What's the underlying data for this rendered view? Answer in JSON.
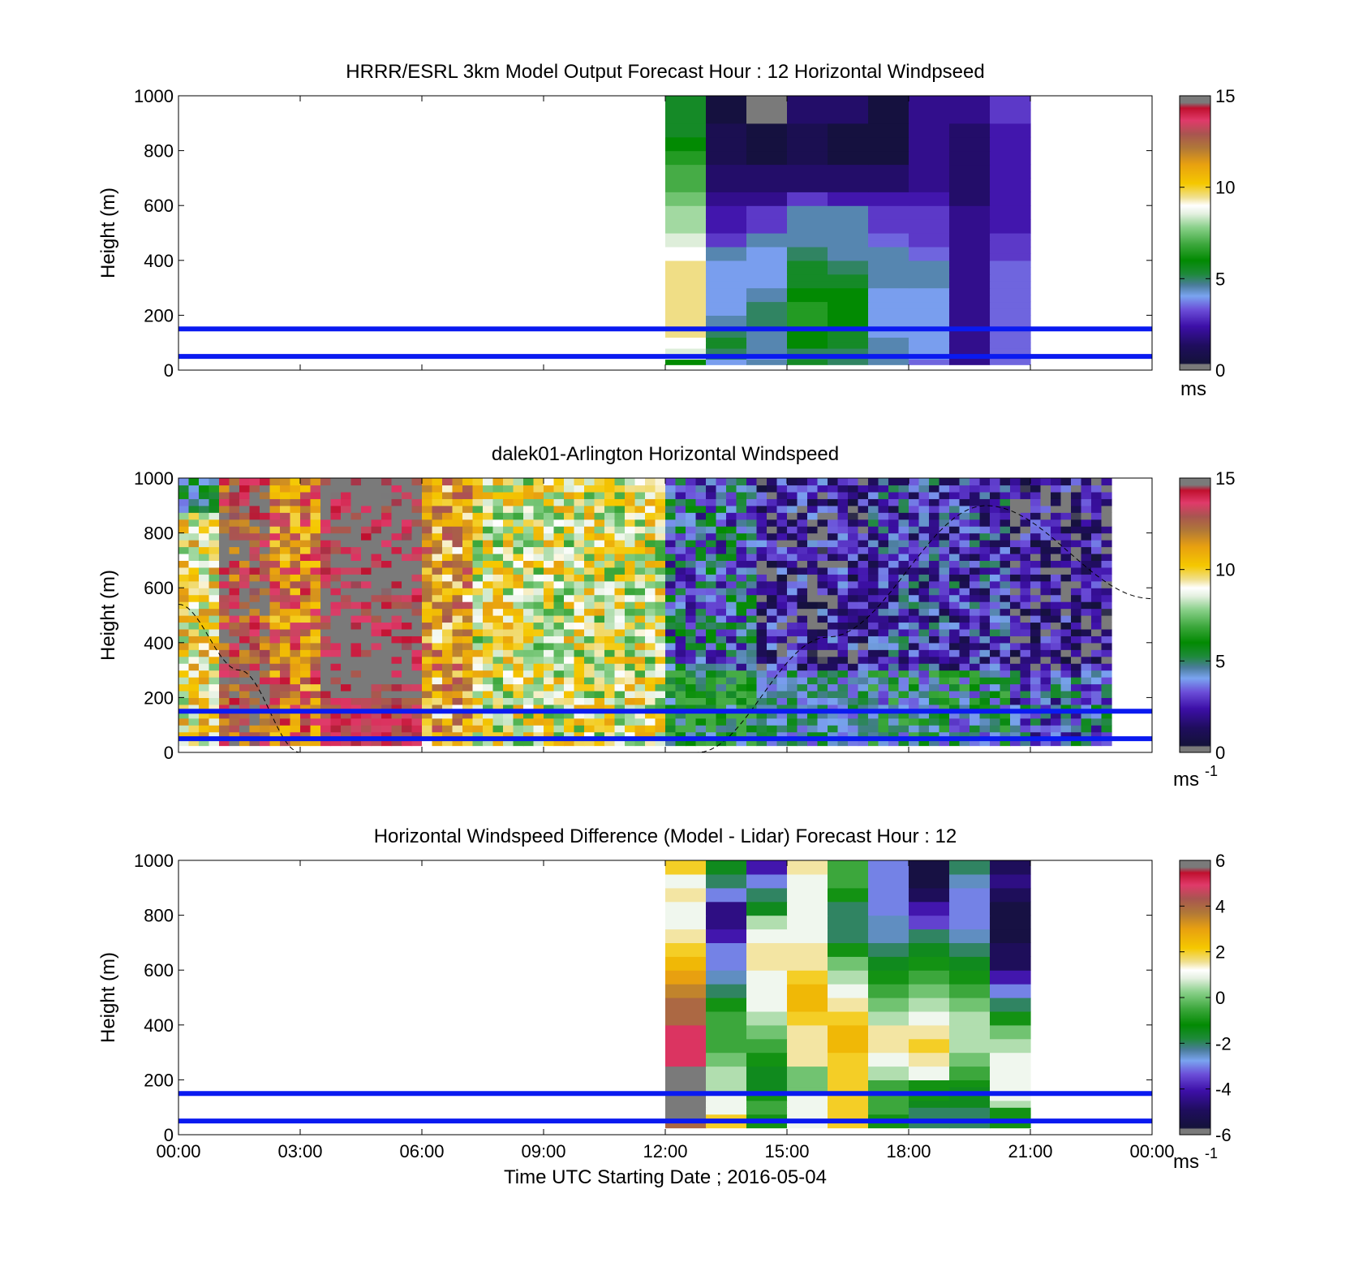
{
  "figure": {
    "xlabel": "Time UTC  Starting Date ; 2016-05-04",
    "x_tick_labels": [
      "00:00",
      "03:00",
      "06:00",
      "09:00",
      "12:00",
      "15:00",
      "18:00",
      "21:00",
      "00:00"
    ]
  },
  "chart_data": [
    {
      "type": "heatmap",
      "title": "HRRR/ESRL 3km Model Output   Forecast Hour : 12 Horizontal Windpseed",
      "ylabel": "Height (m)",
      "xlim_hours": [
        0,
        24
      ],
      "ylim": [
        0,
        1000
      ],
      "y_tick_labels": [
        "0",
        "200",
        "400",
        "600",
        "800",
        "1000"
      ],
      "colorbar": {
        "min": 0,
        "max": 15,
        "ticks": [
          "0",
          "5",
          "10",
          "15"
        ],
        "unit_label": "ms",
        "unit_sup": ""
      },
      "reference_lines_m": [
        50,
        150
      ],
      "column_edges_hours": [
        12,
        13,
        14,
        15,
        16,
        17,
        18,
        19,
        20,
        21
      ],
      "row_edges_m": [
        20,
        40,
        60,
        80,
        100,
        120,
        140,
        160,
        180,
        200,
        225,
        250,
        275,
        300,
        325,
        350,
        375,
        400,
        425,
        450,
        475,
        500,
        550,
        600,
        650,
        700,
        750,
        800,
        850,
        900,
        950,
        1000
      ],
      "values": [
        [
          6.0,
          4.0,
          4.5,
          5.5,
          5.0,
          4.5,
          3.5,
          2.0,
          3.5
        ],
        [
          9.0,
          5.0,
          4.0,
          5.0,
          5.0,
          4.5,
          4.0,
          2.0,
          3.5
        ],
        [
          8.5,
          5.0,
          4.5,
          5.0,
          5.0,
          4.5,
          4.0,
          2.0,
          3.5
        ],
        [
          9.0,
          5.5,
          4.5,
          6.0,
          5.5,
          4.5,
          4.0,
          2.0,
          3.5
        ],
        [
          9.0,
          5.5,
          4.5,
          6.0,
          5.5,
          4.5,
          4.0,
          2.0,
          3.5
        ],
        [
          9.5,
          5.0,
          4.5,
          6.0,
          5.5,
          4.0,
          4.0,
          2.0,
          3.5
        ],
        [
          9.5,
          5.0,
          4.5,
          6.0,
          5.5,
          4.0,
          4.0,
          2.0,
          3.5
        ],
        [
          9.5,
          4.5,
          5.0,
          6.5,
          6.0,
          4.0,
          4.0,
          2.0,
          3.5
        ],
        [
          9.5,
          4.5,
          5.0,
          6.5,
          6.0,
          4.0,
          4.0,
          2.0,
          3.5
        ],
        [
          9.5,
          4.0,
          5.0,
          6.5,
          6.0,
          4.0,
          4.0,
          2.0,
          3.5
        ],
        [
          9.5,
          4.0,
          5.0,
          6.5,
          6.0,
          4.0,
          4.0,
          2.0,
          3.5
        ],
        [
          9.5,
          4.0,
          4.5,
          6.0,
          6.0,
          4.0,
          4.0,
          2.0,
          3.5
        ],
        [
          9.5,
          4.0,
          4.5,
          6.0,
          6.0,
          4.0,
          4.0,
          2.0,
          3.5
        ],
        [
          9.5,
          4.0,
          4.0,
          5.5,
          5.5,
          4.5,
          4.5,
          2.0,
          3.5
        ],
        [
          9.5,
          4.0,
          4.0,
          5.5,
          5.5,
          4.5,
          4.5,
          2.0,
          3.5
        ],
        [
          9.5,
          4.0,
          4.0,
          5.5,
          5.0,
          4.5,
          4.5,
          2.0,
          3.5
        ],
        [
          9.5,
          4.0,
          4.0,
          5.5,
          5.0,
          4.5,
          4.5,
          2.0,
          3.5
        ],
        [
          9.0,
          4.5,
          4.0,
          5.0,
          4.5,
          4.5,
          3.5,
          2.0,
          3.0
        ],
        [
          9.0,
          4.5,
          4.0,
          5.0,
          4.5,
          4.5,
          3.5,
          2.0,
          3.0
        ],
        [
          8.5,
          3.0,
          4.5,
          4.5,
          4.5,
          3.5,
          3.0,
          2.0,
          3.0
        ],
        [
          8.5,
          3.0,
          4.5,
          4.5,
          4.5,
          3.5,
          3.0,
          2.0,
          3.0
        ],
        [
          8.0,
          2.5,
          3.0,
          4.5,
          4.5,
          3.0,
          3.0,
          2.0,
          2.5
        ],
        [
          8.0,
          2.5,
          3.0,
          4.5,
          4.5,
          3.0,
          3.0,
          2.0,
          2.5
        ],
        [
          7.5,
          2.0,
          2.0,
          3.0,
          2.5,
          2.5,
          2.5,
          1.5,
          2.5
        ],
        [
          7.0,
          1.5,
          1.5,
          1.5,
          1.5,
          1.5,
          2.0,
          1.5,
          2.5
        ],
        [
          7.0,
          1.5,
          1.5,
          1.5,
          1.5,
          1.5,
          2.0,
          1.5,
          2.5
        ],
        [
          6.5,
          1.0,
          0.5,
          1.0,
          0.5,
          0.5,
          2.0,
          1.5,
          2.5
        ],
        [
          6.0,
          1.0,
          0.5,
          1.0,
          0.5,
          0.5,
          2.0,
          1.5,
          2.5
        ],
        [
          5.5,
          1.0,
          0.5,
          1.0,
          0.5,
          0.5,
          2.0,
          1.5,
          2.5
        ],
        [
          5.5,
          0.5,
          0.2,
          1.5,
          1.5,
          0.5,
          2.0,
          2.0,
          3.0
        ],
        [
          5.5,
          0.5,
          0.2,
          1.5,
          1.5,
          0.5,
          2.0,
          2.0,
          3.0
        ]
      ]
    },
    {
      "type": "heatmap",
      "title": "dalek01-Arlington  Horizontal Windspeed",
      "ylabel": "Height (m)",
      "xlim_hours": [
        0,
        24
      ],
      "ylim": [
        0,
        1000
      ],
      "y_tick_labels": [
        "0",
        "200",
        "400",
        "600",
        "800",
        "1000"
      ],
      "colorbar": {
        "min": 0,
        "max": 15,
        "ticks": [
          "0",
          "5",
          "10",
          "15"
        ],
        "unit_label": "ms",
        "unit_sup": "-1"
      },
      "reference_lines_m": [
        50,
        150
      ],
      "time_step_hours": 0.25,
      "height_step_m": 25,
      "height_start_m": 25,
      "region_summary": [
        {
          "from_h": 0.0,
          "to_h": 0.8,
          "mean_ms": 9.5,
          "note": "orange/yellow, green aloft"
        },
        {
          "from_h": 0.8,
          "to_h": 2.2,
          "mean_ms": 13.5,
          "note": "red/pink"
        },
        {
          "from_h": 2.2,
          "to_h": 3.3,
          "mean_ms": 12.0,
          "note": "brown/red"
        },
        {
          "from_h": 3.3,
          "to_h": 5.9,
          "mean_ms": 15.0,
          "note": "grey saturated core above 200 m, red below"
        },
        {
          "from_h": 5.9,
          "to_h": 7.1,
          "mean_ms": 11.0,
          "note": "brown"
        },
        {
          "from_h": 7.1,
          "to_h": 12.0,
          "mean_ms": 9.0,
          "note": "yellow/orange with grey/white streaks"
        },
        {
          "from_h": 12.0,
          "to_h": 14.2,
          "mean_ms": 4.0,
          "note": "green/blue mix"
        },
        {
          "from_h": 14.2,
          "to_h": 17.0,
          "mean_ms": 2.0,
          "note": "dark blue/purple aloft, green below 300 m"
        },
        {
          "from_h": 17.0,
          "to_h": 20.5,
          "mean_ms": 3.0,
          "note": "purple/green mix"
        },
        {
          "from_h": 20.5,
          "to_h": 23.0,
          "mean_ms": 1.5,
          "note": "dark purple/navy aloft, green below"
        }
      ],
      "dashed_curve": {
        "description": "sinusoid-like dashed reference curve",
        "points_hours_m": [
          [
            0.0,
            540
          ],
          [
            1.5,
            300
          ],
          [
            3.0,
            0
          ],
          [
            12.8,
            0
          ],
          [
            16.0,
            420
          ],
          [
            19.9,
            900
          ],
          [
            24.0,
            560
          ]
        ]
      }
    },
    {
      "type": "heatmap",
      "title": "Horizontal Windspeed Difference (Model - Lidar) Forecast Hour : 12",
      "ylabel": "Height (m)",
      "xlim_hours": [
        0,
        24
      ],
      "ylim": [
        0,
        1000
      ],
      "y_tick_labels": [
        "0",
        "200",
        "400",
        "600",
        "800",
        "1000"
      ],
      "colorbar": {
        "min": -6,
        "max": 6,
        "ticks": [
          "-6",
          "-4",
          "-2",
          "0",
          "2",
          "4",
          "6"
        ],
        "unit_label": "ms",
        "unit_sup": "-1"
      },
      "reference_lines_m": [
        50,
        150
      ],
      "column_edges_hours": [
        12,
        13,
        14,
        15,
        16,
        17,
        18,
        19,
        20,
        21
      ],
      "row_edges_m": [
        25,
        50,
        75,
        100,
        125,
        150,
        175,
        200,
        250,
        300,
        350,
        400,
        450,
        500,
        550,
        600,
        650,
        700,
        750,
        800,
        850,
        900,
        950,
        1000
      ],
      "values": [
        [
          4.0,
          2.0,
          -1.0,
          1.0,
          2.0,
          -1.0,
          -2.0,
          -2.0,
          -1.0
        ],
        [
          6.0,
          2.0,
          -1.0,
          1.0,
          2.0,
          -1.0,
          -2.0,
          -2.0,
          -1.0
        ],
        [
          6.0,
          1.0,
          -0.5,
          1.0,
          2.0,
          -0.5,
          -2.0,
          -2.0,
          -1.0
        ],
        [
          6.0,
          1.0,
          -0.5,
          1.0,
          2.0,
          -0.5,
          -1.5,
          -1.5,
          0.5
        ],
        [
          6.0,
          1.0,
          -1.0,
          1.0,
          2.0,
          -0.5,
          -1.0,
          -1.5,
          1.0
        ],
        [
          6.0,
          0.5,
          -1.5,
          0.0,
          2.0,
          -0.5,
          -1.0,
          -1.5,
          1.0
        ],
        [
          6.0,
          0.5,
          -1.5,
          0.0,
          2.0,
          -0.5,
          -1.0,
          -1.0,
          1.0
        ],
        [
          6.0,
          0.5,
          -1.5,
          0.0,
          2.0,
          0.5,
          1.0,
          -0.5,
          1.0
        ],
        [
          5.0,
          0.0,
          -1.0,
          1.5,
          2.0,
          1.0,
          1.5,
          0.0,
          1.0
        ],
        [
          5.0,
          -0.5,
          -0.5,
          1.5,
          2.5,
          1.5,
          2.0,
          0.5,
          0.5
        ],
        [
          5.0,
          -0.5,
          0.0,
          1.5,
          2.5,
          1.5,
          1.5,
          0.5,
          0.0
        ],
        [
          4.0,
          -0.5,
          0.5,
          2.0,
          2.0,
          0.5,
          1.0,
          0.5,
          -1.0
        ],
        [
          4.0,
          -1.0,
          1.0,
          2.5,
          1.5,
          0.0,
          0.5,
          0.0,
          -2.0
        ],
        [
          3.5,
          -2.0,
          1.0,
          2.5,
          1.0,
          -0.5,
          0.0,
          -0.5,
          -3.0
        ],
        [
          3.0,
          -2.5,
          1.0,
          2.0,
          0.5,
          -1.0,
          -0.5,
          -1.0,
          -4.0
        ],
        [
          2.5,
          -3.0,
          1.5,
          1.5,
          0.0,
          -1.5,
          -1.0,
          -1.5,
          -5.0
        ],
        [
          2.0,
          -3.0,
          1.5,
          1.5,
          -1.0,
          -2.0,
          -1.5,
          -2.0,
          -5.0
        ],
        [
          1.5,
          -4.0,
          1.0,
          1.0,
          -2.0,
          -2.5,
          -2.0,
          -2.5,
          -5.5
        ],
        [
          1.0,
          -4.5,
          0.5,
          1.0,
          -2.0,
          -2.5,
          -3.5,
          -3.0,
          -5.5
        ],
        [
          1.0,
          -4.5,
          -1.5,
          1.0,
          -2.0,
          -3.0,
          -4.0,
          -3.0,
          -5.5
        ],
        [
          1.5,
          -3.0,
          -2.0,
          1.0,
          -1.0,
          -3.0,
          -5.0,
          -3.0,
          -5.0
        ],
        [
          1.0,
          -2.0,
          -3.0,
          1.0,
          -0.5,
          -3.0,
          -5.5,
          -2.5,
          -4.5
        ],
        [
          2.0,
          -1.5,
          -4.0,
          1.5,
          -0.5,
          -3.0,
          -5.5,
          -2.0,
          -5.0
        ]
      ]
    }
  ]
}
